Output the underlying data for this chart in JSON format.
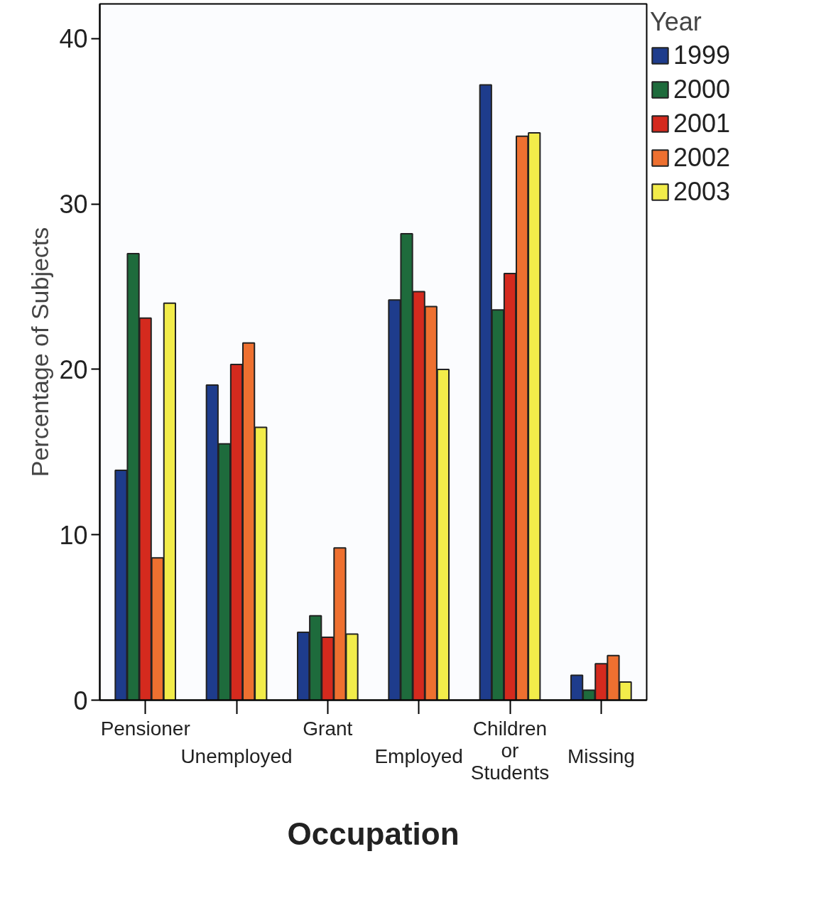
{
  "chart_data": {
    "type": "bar",
    "xlabel": "Occupation",
    "ylabel": "Percentage of Subjects",
    "legend_title": "Year",
    "categories": [
      "Pensioner",
      "Unemployed",
      "Grant",
      "Employed",
      "Children or Students",
      "Missing"
    ],
    "series": [
      {
        "name": "1999",
        "color": "#1e3c8c",
        "values": [
          13.9,
          19.05,
          4.1,
          24.2,
          37.2,
          1.5
        ]
      },
      {
        "name": "2000",
        "color": "#1e6b3c",
        "values": [
          27.0,
          15.5,
          5.1,
          28.2,
          23.6,
          0.6
        ]
      },
      {
        "name": "2001",
        "color": "#d42a1e",
        "values": [
          23.1,
          20.3,
          3.8,
          24.7,
          25.8,
          2.2
        ]
      },
      {
        "name": "2002",
        "color": "#ee7030",
        "values": [
          8.6,
          21.6,
          9.2,
          23.8,
          34.1,
          2.7
        ]
      },
      {
        "name": "2003",
        "color": "#f2ec4a",
        "values": [
          24.0,
          16.5,
          4.0,
          20.0,
          34.3,
          1.1
        ]
      }
    ],
    "ylim": [
      0,
      42.1
    ],
    "yticks": [
      0,
      10,
      20,
      30,
      40
    ],
    "grid": false,
    "legend": "top right"
  }
}
